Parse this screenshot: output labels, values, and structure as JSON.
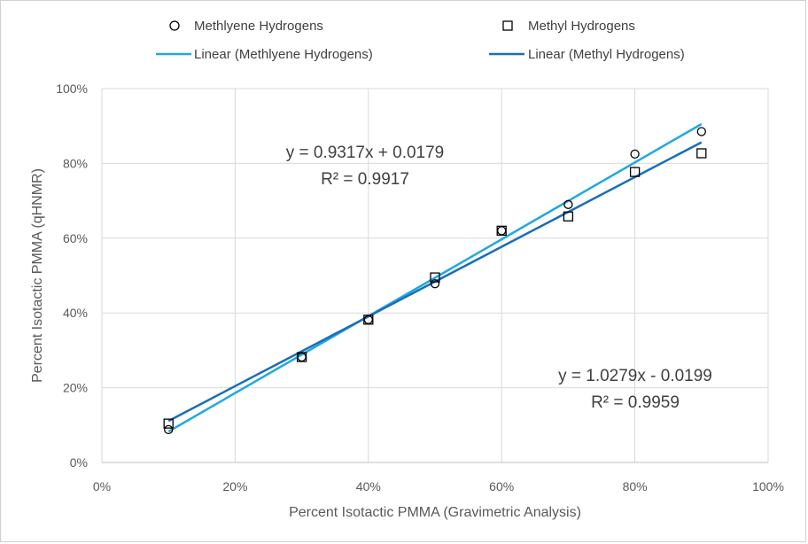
{
  "chart_data": {
    "type": "scatter",
    "xlabel": "Percent Isotactic PMMA (Gravimetric Analysis)",
    "ylabel": "Percent Isotactic PMMA (qHNMR)",
    "xlim": [
      0,
      1
    ],
    "ylim": [
      0,
      1
    ],
    "x_ticks": [
      {
        "value": 0,
        "label": "0%"
      },
      {
        "value": 0.2,
        "label": "20%"
      },
      {
        "value": 0.4,
        "label": "40%"
      },
      {
        "value": 0.6,
        "label": "60%"
      },
      {
        "value": 0.8,
        "label": "80%"
      },
      {
        "value": 1.0,
        "label": "100%"
      }
    ],
    "y_ticks": [
      {
        "value": 0,
        "label": "0%"
      },
      {
        "value": 0.2,
        "label": "20%"
      },
      {
        "value": 0.4,
        "label": "40%"
      },
      {
        "value": 0.6,
        "label": "60%"
      },
      {
        "value": 0.8,
        "label": "80%"
      },
      {
        "value": 1.0,
        "label": "100%"
      }
    ],
    "grid": true,
    "legend_position": "top",
    "series": [
      {
        "name": "Methlyene Hydrogens",
        "marker": "circle",
        "color": "#000000",
        "points": [
          {
            "x": 0.1,
            "y": 0.088
          },
          {
            "x": 0.3,
            "y": 0.282
          },
          {
            "x": 0.4,
            "y": 0.382
          },
          {
            "x": 0.5,
            "y": 0.478
          },
          {
            "x": 0.6,
            "y": 0.62
          },
          {
            "x": 0.7,
            "y": 0.69
          },
          {
            "x": 0.8,
            "y": 0.825
          },
          {
            "x": 0.9,
            "y": 0.885
          }
        ]
      },
      {
        "name": "Methyl Hydrogens",
        "marker": "square",
        "color": "#000000",
        "points": [
          {
            "x": 0.1,
            "y": 0.104
          },
          {
            "x": 0.3,
            "y": 0.282
          },
          {
            "x": 0.4,
            "y": 0.382
          },
          {
            "x": 0.5,
            "y": 0.495
          },
          {
            "x": 0.6,
            "y": 0.62
          },
          {
            "x": 0.7,
            "y": 0.658
          },
          {
            "x": 0.8,
            "y": 0.777
          },
          {
            "x": 0.9,
            "y": 0.827
          }
        ]
      }
    ],
    "trendlines": [
      {
        "name": "Linear (Methlyene Hydrogens)",
        "color": "#21a8e0",
        "slope": 1.0279,
        "intercept": -0.0199,
        "x_range": [
          0.1,
          0.9
        ],
        "equation": "y = 1.0279x - 0.0199",
        "r2": "R² = 0.9959"
      },
      {
        "name": "Linear (Methyl Hydrogens)",
        "color": "#1a6eb5",
        "slope": 0.9317,
        "intercept": 0.0179,
        "x_range": [
          0.1,
          0.9
        ],
        "equation": "y = 0.9317x + 0.0179",
        "r2": "R² = 0.9917"
      }
    ]
  }
}
